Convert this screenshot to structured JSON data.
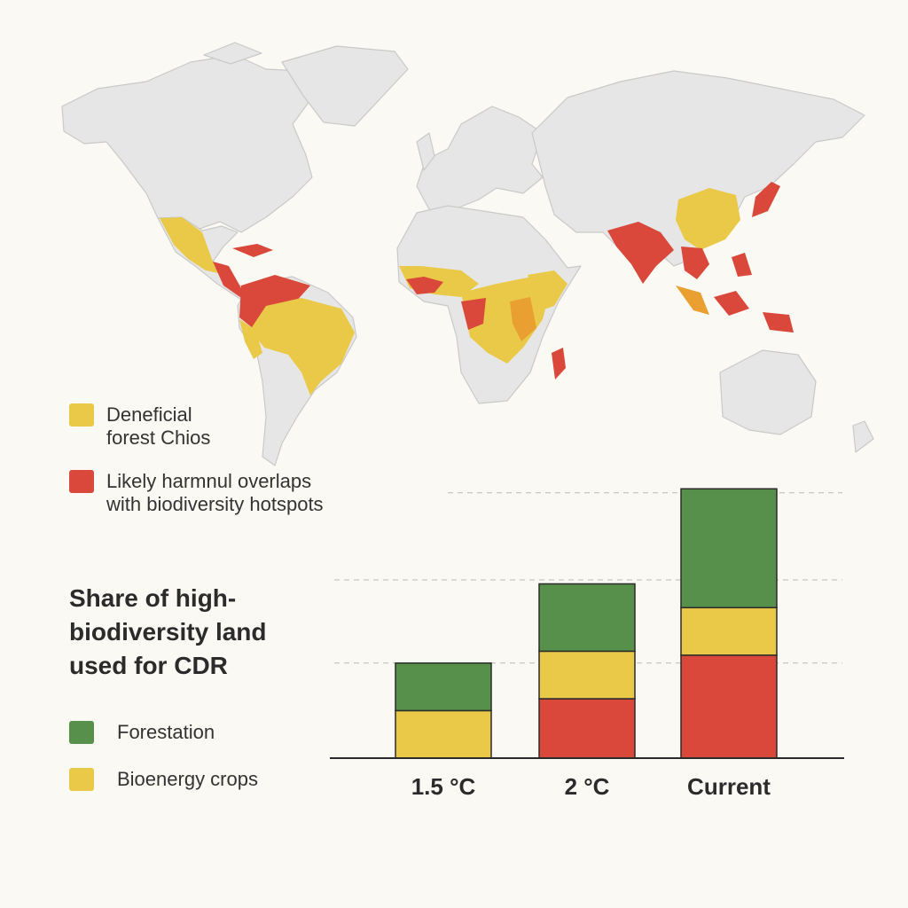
{
  "colors": {
    "land": "#e6e6e6",
    "coast": "#c9c9c9",
    "yellow": "#e9c947",
    "red": "#d9483a",
    "green": "#57904a",
    "orange": "#eaa030"
  },
  "map_legend": [
    {
      "label": "Deneficial\nforest Chios",
      "color": "#e9c947"
    },
    {
      "label": "Likely harmnul overlaps\nwith biodiversity hotspots",
      "color": "#d9483a"
    }
  ],
  "chart_title": "Share of high-\nbiodiversity land\nused for CDR",
  "chart_legend": [
    {
      "label": "Forestation",
      "color": "#57904a"
    },
    {
      "label": "Bioenergy crops",
      "color": "#e9c947"
    }
  ],
  "chart_data": {
    "type": "bar",
    "stacked": true,
    "categories": [
      "1.5 °C",
      "2 °C",
      "Current"
    ],
    "series": [
      {
        "name": "",
        "color": "#d9483a",
        "values": [
          0,
          1.5,
          2.6
        ]
      },
      {
        "name": "Bioenergy crops",
        "color": "#e9c947",
        "values": [
          1.2,
          1.2,
          1.2
        ]
      },
      {
        "name": "Forestation",
        "color": "#57904a",
        "values": [
          1.2,
          1.7,
          3.0
        ]
      }
    ],
    "ylim": [
      0,
      7.5
    ],
    "grid": true,
    "gridlines": [
      2.4,
      4.5,
      6.7
    ],
    "xlabel": "",
    "ylabel": ""
  }
}
